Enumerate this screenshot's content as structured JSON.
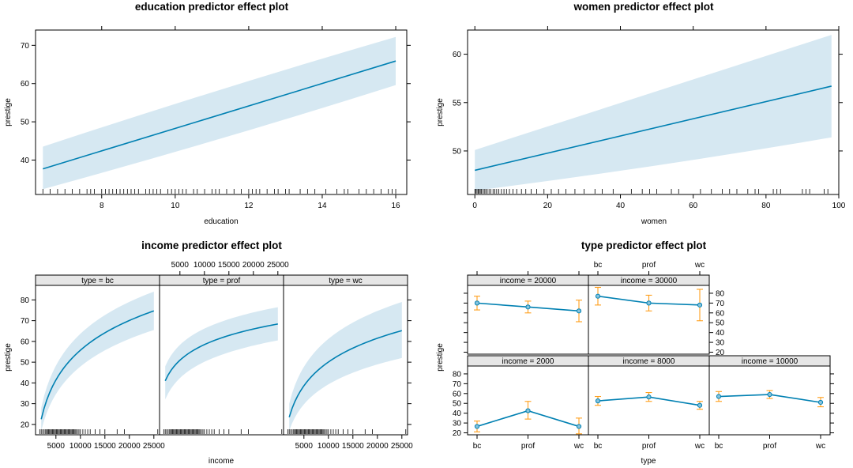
{
  "colors": {
    "line": "#0080b2",
    "band": "#d6e8f2",
    "err": "#ff9f1c",
    "strip": "#e6e6e6",
    "point_fill": "#86c3de"
  },
  "chart_data": [
    {
      "id": "education",
      "type": "line",
      "title": "education predictor effect plot",
      "xlabel": "education",
      "ylabel": "prestige",
      "xlim": [
        6.2,
        16.3
      ],
      "ylim": [
        31,
        74
      ],
      "xticks": [
        8,
        10,
        12,
        14,
        16
      ],
      "yticks": [
        40,
        50,
        60,
        70
      ],
      "x": [
        6.4,
        16.0
      ],
      "fit": [
        37.7,
        65.9
      ],
      "lower": [
        32.4,
        59.6
      ],
      "upper": [
        43.5,
        72.2
      ],
      "rug": [
        6.4,
        6.6,
        6.8,
        7.0,
        7.2,
        7.4,
        7.6,
        7.7,
        7.8,
        8.0,
        8.1,
        8.2,
        8.3,
        8.4,
        8.5,
        8.6,
        8.7,
        8.8,
        8.9,
        9.0,
        9.2,
        9.3,
        9.4,
        9.5,
        9.6,
        9.8,
        9.9,
        10.0,
        10.1,
        10.2,
        10.3,
        10.5,
        10.6,
        10.8,
        11.0,
        11.1,
        11.2,
        11.4,
        11.6,
        11.8,
        12.0,
        12.1,
        12.2,
        12.3,
        12.5,
        12.7,
        12.8,
        13.0,
        13.1,
        13.4,
        13.6,
        13.8,
        14.1,
        14.4,
        14.6,
        14.7,
        15.0,
        15.2,
        15.4,
        15.6,
        15.8,
        15.9,
        16.0
      ]
    },
    {
      "id": "women",
      "type": "line",
      "title": "women predictor effect plot",
      "xlabel": "women",
      "ylabel": "prestige",
      "xlim": [
        -2,
        100
      ],
      "ylim": [
        45.5,
        62.5
      ],
      "xticks": [
        0,
        20,
        40,
        60,
        80,
        100
      ],
      "yticks": [
        50,
        55,
        60
      ],
      "x": [
        0,
        98
      ],
      "fit": [
        48.0,
        56.7
      ],
      "lower": [
        45.9,
        51.4
      ],
      "upper": [
        50.1,
        62.0
      ],
      "rug": [
        0,
        0.3,
        0.6,
        0.9,
        1.2,
        1.5,
        1.8,
        2.2,
        2.6,
        3.0,
        3.4,
        3.9,
        4.4,
        5.0,
        5.5,
        6.0,
        6.6,
        7.3,
        8.0,
        8.7,
        9.5,
        10.5,
        11.5,
        12.8,
        14,
        15.5,
        17,
        19,
        21,
        23,
        25,
        27.5,
        30,
        33,
        35,
        38,
        43,
        46,
        48,
        50,
        54,
        56,
        62,
        65,
        68,
        70,
        72,
        75,
        77,
        78,
        82,
        83,
        84,
        90,
        91,
        92,
        96,
        97
      ]
    },
    {
      "id": "income",
      "type": "line",
      "title": "income predictor effect plot",
      "xlabel": "income",
      "ylabel": "prestige",
      "xlim": [
        1000,
        26000
      ],
      "ylim": [
        15,
        87
      ],
      "xticks": [
        5000,
        10000,
        15000,
        20000,
        25000
      ],
      "xtick_labels": [
        "5000",
        "10000",
        "15000",
        "20000",
        "25000"
      ],
      "yticks": [
        20,
        30,
        40,
        50,
        60,
        70,
        80
      ],
      "panels": [
        {
          "strip": "type = bc",
          "x": [
            2000,
            25000
          ],
          "coef": [
            22.5,
            52.2
          ],
          "lo": [
            17,
            65.5
          ],
          "hi": [
            28,
            84
          ],
          "ref": 11000
        },
        {
          "strip": "type = prof",
          "x": [
            2000,
            25000
          ],
          "coef": [
            41.0,
            27.4
          ],
          "lo": [
            32,
            60.5
          ],
          "hi": [
            48,
            76.5
          ],
          "ref": 11000
        },
        {
          "strip": "type = wc",
          "x": [
            2000,
            25000
          ],
          "coef": [
            23.5,
            41.7
          ],
          "lo": [
            17,
            52
          ],
          "hi": [
            30,
            79
          ],
          "ref": 11000
        }
      ],
      "rug": [
        1700,
        2000,
        2300,
        2600,
        2900,
        3100,
        3300,
        3500,
        3700,
        3900,
        4100,
        4300,
        4500,
        4700,
        4900,
        5100,
        5300,
        5500,
        5700,
        5900,
        6100,
        6300,
        6500,
        6700,
        6900,
        7100,
        7300,
        7500,
        7700,
        7900,
        8100,
        8300,
        8500,
        8700,
        8900,
        9100,
        9400,
        9700,
        10000,
        10500,
        11000,
        11500,
        12000,
        13000,
        14000,
        15000,
        17500,
        19000,
        25800
      ]
    },
    {
      "id": "type",
      "type": "line",
      "title": "type predictor effect plot",
      "xlabel": "type",
      "ylabel": "prestige",
      "categories": [
        "bc",
        "prof",
        "wc"
      ],
      "ylim": [
        18,
        88
      ],
      "yticks": [
        20,
        30,
        40,
        50,
        60,
        70,
        80
      ],
      "panels": [
        {
          "strip": "income = 20000",
          "row": 0,
          "col": 0,
          "values": [
            70,
            66,
            62
          ],
          "lower": [
            63,
            60,
            51
          ],
          "upper": [
            77,
            72,
            73
          ]
        },
        {
          "strip": "income = 30000",
          "row": 0,
          "col": 1,
          "values": [
            77,
            70,
            68
          ],
          "lower": [
            68,
            62,
            52
          ],
          "upper": [
            86,
            78,
            84
          ]
        },
        {
          "strip": "income = 2000",
          "row": 1,
          "col": 0,
          "values": [
            26.5,
            42.5,
            26.5
          ],
          "lower": [
            21,
            34,
            19
          ],
          "upper": [
            32,
            52,
            35
          ]
        },
        {
          "strip": "income = 8000",
          "row": 1,
          "col": 1,
          "values": [
            52.5,
            56.5,
            48
          ],
          "lower": [
            48,
            52,
            44
          ],
          "upper": [
            57,
            61,
            52
          ]
        },
        {
          "strip": "income = 10000",
          "row": 1,
          "col": 2,
          "values": [
            57,
            59,
            51
          ],
          "lower": [
            52,
            55,
            46.5
          ],
          "upper": [
            62,
            63,
            56
          ]
        }
      ]
    }
  ]
}
